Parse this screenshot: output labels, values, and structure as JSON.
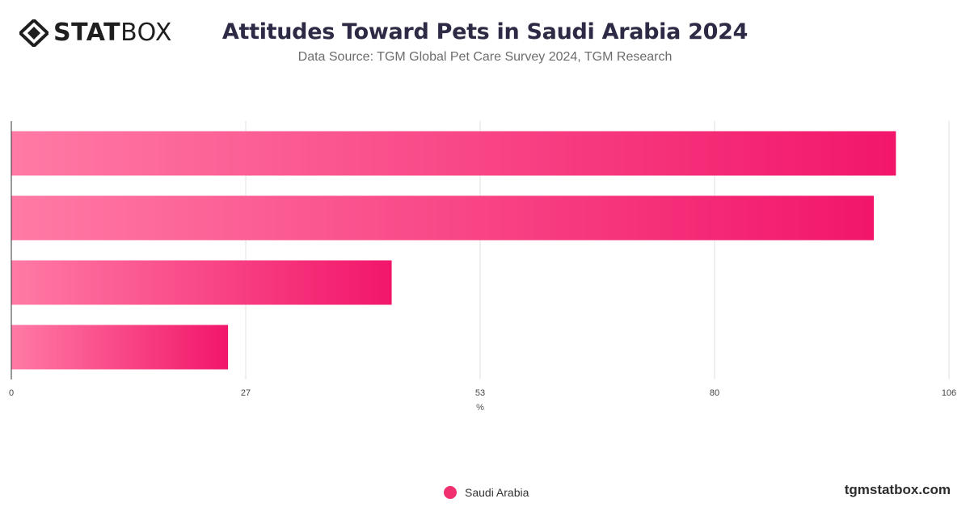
{
  "brand": {
    "logo_bold": "STAT",
    "logo_light": "BOX",
    "site": "tgmstatbox.com"
  },
  "header": {
    "title": "Attitudes Toward Pets in Saudi Arabia 2024",
    "subtitle": "Data Source: TGM Global Pet Care Survey 2024, TGM Research"
  },
  "chart_data": {
    "type": "bar",
    "orientation": "horizontal",
    "title": "Attitudes Toward Pets in Saudi Arabia 2024",
    "subtitle": "Data Source: TGM Global Pet Care Survey 2024, TGM Research",
    "xlabel": "%",
    "ylabel": "",
    "xlim": [
      0,
      106
    ],
    "xticks": [
      "0",
      "27",
      "53",
      "80",
      "106"
    ],
    "tick_values": [
      0,
      26.5,
      53,
      79.5,
      106
    ],
    "categories": [
      "",
      "",
      "",
      ""
    ],
    "series": [
      {
        "name": "Saudi Arabia",
        "values": [
          100,
          97.5,
          43,
          24.5
        ]
      }
    ],
    "grid": true,
    "legend": "bottom-center",
    "colors": {
      "bar_start": "#ff7aa5",
      "bar_end": "#f2166a",
      "grid": "#e2e2e2",
      "axis": "#333333"
    }
  }
}
